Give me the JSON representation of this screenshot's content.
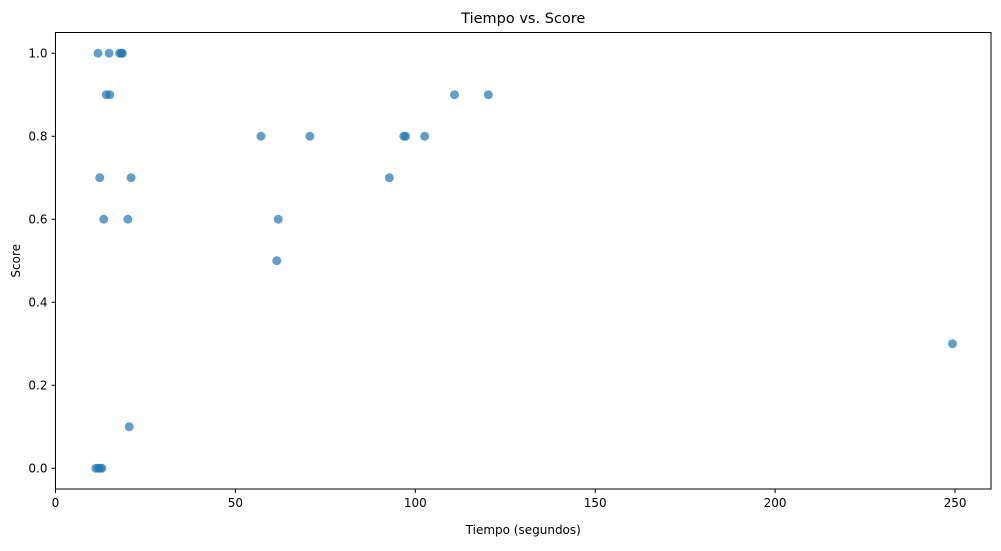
{
  "chart_data": {
    "type": "scatter",
    "title": "Tiempo vs. Score",
    "xlabel": "Tiempo (segundos)",
    "ylabel": "Score",
    "xlim": [
      0,
      260
    ],
    "ylim": [
      -0.05,
      1.05
    ],
    "x_ticks": [
      0,
      50,
      100,
      150,
      200,
      250
    ],
    "y_ticks": [
      0.0,
      0.2,
      0.4,
      0.6,
      0.8,
      1.0
    ],
    "x_tick_labels": [
      "0",
      "50",
      "100",
      "150",
      "200",
      "250"
    ],
    "y_tick_labels": [
      "0.0",
      "0.2",
      "0.4",
      "0.6",
      "0.8",
      "1.0"
    ],
    "grid": false,
    "legend": "none",
    "marker_color": "#1f77b4",
    "marker_alpha": 0.7,
    "points": [
      {
        "x": 11.8,
        "y": 1.0
      },
      {
        "x": 14.9,
        "y": 1.0
      },
      {
        "x": 17.8,
        "y": 1.0
      },
      {
        "x": 18.3,
        "y": 1.0
      },
      {
        "x": 18.6,
        "y": 1.0
      },
      {
        "x": 14.1,
        "y": 0.9
      },
      {
        "x": 15.1,
        "y": 0.9
      },
      {
        "x": 110.9,
        "y": 0.9
      },
      {
        "x": 120.3,
        "y": 0.9
      },
      {
        "x": 57.1,
        "y": 0.8
      },
      {
        "x": 70.7,
        "y": 0.8
      },
      {
        "x": 96.8,
        "y": 0.8
      },
      {
        "x": 97.3,
        "y": 0.8
      },
      {
        "x": 102.6,
        "y": 0.8
      },
      {
        "x": 12.3,
        "y": 0.7
      },
      {
        "x": 21.0,
        "y": 0.7
      },
      {
        "x": 92.8,
        "y": 0.7
      },
      {
        "x": 13.4,
        "y": 0.6
      },
      {
        "x": 20.1,
        "y": 0.6
      },
      {
        "x": 61.9,
        "y": 0.6
      },
      {
        "x": 61.5,
        "y": 0.5
      },
      {
        "x": 249.3,
        "y": 0.3
      },
      {
        "x": 20.5,
        "y": 0.1
      },
      {
        "x": 11.2,
        "y": 0.0
      },
      {
        "x": 11.8,
        "y": 0.0
      },
      {
        "x": 12.4,
        "y": 0.0
      },
      {
        "x": 12.9,
        "y": 0.0
      }
    ]
  }
}
